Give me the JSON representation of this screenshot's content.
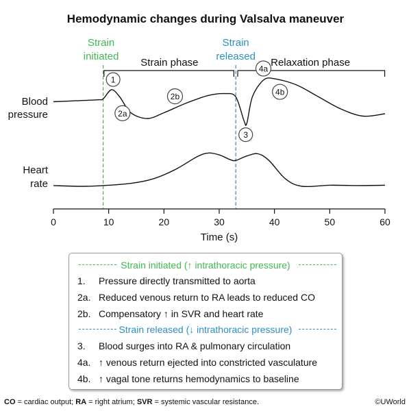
{
  "title": "Hemodynamic changes during Valsalva maneuver",
  "events": {
    "strain_initiated": {
      "line1": "Strain",
      "line2": "initiated",
      "time": 9,
      "color": "#3fb950"
    },
    "strain_released": {
      "line1": "Strain",
      "line2": "released",
      "time": 33,
      "color": "#2b8fc5"
    }
  },
  "phases": [
    {
      "label": "Strain phase",
      "start": 9,
      "end": 33
    },
    {
      "label": "Relaxation phase",
      "start": 33,
      "end": 60
    }
  ],
  "y_labels": {
    "blood_pressure": {
      "line1": "Blood",
      "line2": "pressure"
    },
    "heart_rate": {
      "line1": "Heart",
      "line2": "rate"
    }
  },
  "x_axis": {
    "label": "Time (s)",
    "range": [
      0,
      60
    ],
    "ticks": [
      "0",
      "10",
      "20",
      "30",
      "40",
      "50",
      "60"
    ]
  },
  "chart_data": {
    "type": "line",
    "x_unit": "s",
    "xlabel": "Time (s)",
    "xlim": [
      0,
      60
    ],
    "series": [
      {
        "name": "Blood pressure",
        "x": [
          0,
          4,
          8,
          9,
          10.5,
          12,
          14,
          17,
          20,
          24,
          28,
          31,
          33,
          34.5,
          35,
          36,
          38,
          40,
          44,
          48,
          52,
          56,
          60
        ],
        "y": [
          0.45,
          0.47,
          0.49,
          0.51,
          0.7,
          0.55,
          0.22,
          0.1,
          0.22,
          0.42,
          0.58,
          0.62,
          0.55,
          0.05,
          0.0,
          0.55,
          0.9,
          0.93,
          0.8,
          0.55,
          0.3,
          0.15,
          0.2
        ]
      },
      {
        "name": "Heart rate",
        "x": [
          0,
          5,
          9,
          14,
          18,
          22,
          26,
          28,
          30,
          32,
          33,
          35,
          37,
          39,
          42,
          45,
          50,
          55,
          60
        ],
        "y": [
          0.02,
          0.0,
          0.02,
          0.08,
          0.2,
          0.45,
          0.8,
          0.9,
          0.85,
          0.72,
          0.7,
          0.82,
          0.88,
          0.7,
          0.2,
          0.0,
          0.03,
          0.02,
          0.03
        ]
      }
    ],
    "annotations": [
      {
        "label": "1",
        "x": 10.8,
        "series": "Blood pressure",
        "offset": "above"
      },
      {
        "label": "2a",
        "x": 12.5,
        "series": "Blood pressure",
        "offset": "below"
      },
      {
        "label": "2b",
        "x": 22,
        "series": "Blood pressure",
        "offset": "above"
      },
      {
        "label": "3",
        "x": 34.8,
        "series": "Blood pressure",
        "offset": "below"
      },
      {
        "label": "4a",
        "x": 38,
        "series": "Blood pressure",
        "offset": "above"
      },
      {
        "label": "4b",
        "x": 40.5,
        "series": "Blood pressure",
        "offset": "below"
      }
    ]
  },
  "legend": {
    "sections": [
      {
        "title": "Strain initiated (↑ intrathoracic pressure)",
        "color": "#3fb950",
        "items": [
          {
            "num": "1.",
            "text": "Pressure directly transmitted to aorta"
          },
          {
            "num": "2a.",
            "text": "Reduced venous return to RA leads to reduced CO"
          },
          {
            "num": "2b.",
            "text": "Compensatory ↑ in SVR and heart rate"
          }
        ]
      },
      {
        "title": "Strain released (↓ intrathoracic pressure)",
        "color": "#2b8fc5",
        "items": [
          {
            "num": "3.",
            "text": "Blood surges into RA & pulmonary circulation"
          },
          {
            "num": "4a.",
            "text": "↑ venous return ejected into constricted vasculature"
          },
          {
            "num": "4b.",
            "text": "↑ vagal tone returns hemodynamics to baseline"
          }
        ]
      }
    ]
  },
  "footer": {
    "co_abbr": "CO",
    "co_text": " = cardiac output; ",
    "ra_abbr": "RA",
    "ra_text": " = right atrium; ",
    "svr_abbr": "SVR",
    "svr_text": " = systemic vascular resistance."
  },
  "copyright": "©UWorld"
}
